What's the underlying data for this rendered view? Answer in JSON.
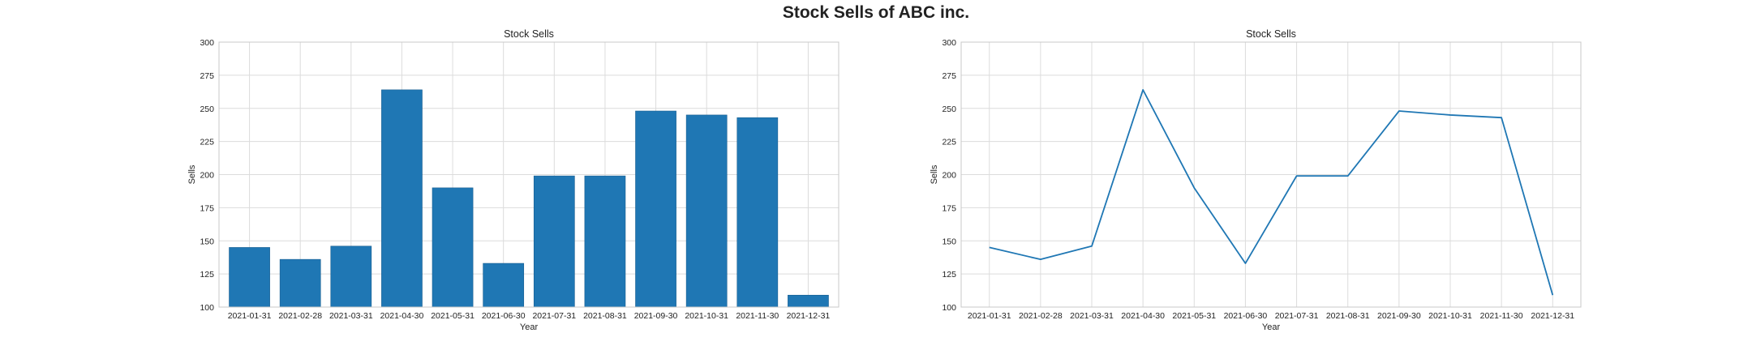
{
  "suptitle": "Stock Sells of ABC inc.",
  "chart_data": [
    {
      "type": "bar",
      "title": "Stock Sells",
      "xlabel": "Year",
      "ylabel": "Sells",
      "ylim": [
        100,
        300
      ],
      "yticks": [
        100,
        125,
        150,
        175,
        200,
        225,
        250,
        275,
        300
      ],
      "grid": true,
      "color": "#1f77b4",
      "categories": [
        "2021-01-31",
        "2021-02-28",
        "2021-03-31",
        "2021-04-30",
        "2021-05-31",
        "2021-06-30",
        "2021-07-31",
        "2021-08-31",
        "2021-09-30",
        "2021-10-31",
        "2021-11-30",
        "2021-12-31"
      ],
      "values": [
        145,
        136,
        146,
        264,
        190,
        133,
        199,
        199,
        248,
        245,
        243,
        109
      ]
    },
    {
      "type": "line",
      "title": "Stock Sells",
      "xlabel": "Year",
      "ylabel": "Sells",
      "ylim": [
        100,
        300
      ],
      "yticks": [
        100,
        125,
        150,
        175,
        200,
        225,
        250,
        275,
        300
      ],
      "grid": true,
      "color": "#1f77b4",
      "categories": [
        "2021-01-31",
        "2021-02-28",
        "2021-03-31",
        "2021-04-30",
        "2021-05-31",
        "2021-06-30",
        "2021-07-31",
        "2021-08-31",
        "2021-09-30",
        "2021-10-31",
        "2021-11-30",
        "2021-12-31"
      ],
      "values": [
        145,
        136,
        146,
        264,
        190,
        133,
        199,
        199,
        248,
        245,
        243,
        109
      ]
    }
  ]
}
